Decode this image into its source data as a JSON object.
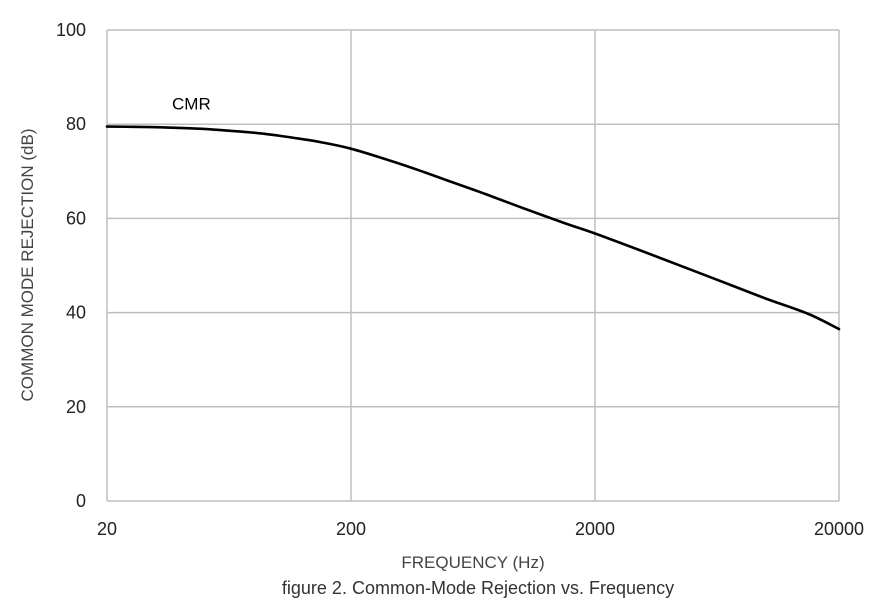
{
  "chart_data": {
    "type": "line",
    "xlabel": "FREQUENCY (Hz)",
    "ylabel": "COMMON MODE REJECTION (dB)",
    "caption": "figure 2. Common-Mode Rejection vs. Frequency",
    "x_scale": "log",
    "xlim": [
      20,
      20000
    ],
    "ylim": [
      0,
      100
    ],
    "x_ticks": [
      20,
      200,
      2000,
      20000
    ],
    "x_tick_labels": [
      "20",
      "200",
      "2000",
      "20000"
    ],
    "y_ticks": [
      0,
      20,
      40,
      60,
      80,
      100
    ],
    "y_tick_labels": [
      "0",
      "20",
      "40",
      "60",
      "80",
      "100"
    ],
    "grid": true,
    "series": [
      {
        "name": "CMR",
        "color": "#000000",
        "x": [
          20,
          30,
          40,
          50,
          60,
          80,
          100,
          120,
          150,
          200,
          300,
          400,
          500,
          700,
          1000,
          1500,
          2000,
          3000,
          5000,
          7000,
          10000,
          15000,
          20000
        ],
        "y": [
          79.5,
          79.4,
          79.2,
          79.0,
          78.7,
          78.2,
          77.6,
          77.0,
          76.2,
          74.8,
          72.0,
          69.8,
          68.0,
          65.3,
          62.3,
          59.0,
          56.8,
          53.4,
          49.0,
          46.1,
          43.0,
          39.7,
          36.5
        ]
      }
    ]
  },
  "colors": {
    "grid": "#bfbfbf",
    "line": "#000000",
    "text": "#222222"
  }
}
